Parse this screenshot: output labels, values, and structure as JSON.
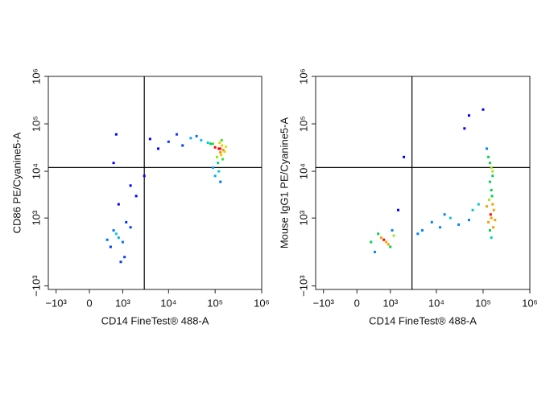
{
  "chart_data": [
    {
      "type": "scatter",
      "scale": "biexponential",
      "x_label": "CD14 FineTest® 488-A",
      "y_label": "CD86 PE/Cyanine5-A",
      "xlim": [
        -1500,
        1000000
      ],
      "ylim": [
        -1200,
        1000000
      ],
      "xticks": [
        {
          "value": -1000,
          "label": "−10³"
        },
        0,
        {
          "value": 1000,
          "label": "10³"
        },
        {
          "value": 10000,
          "label": "10⁴"
        },
        {
          "value": 100000,
          "label": "10⁵"
        },
        {
          "value": 1000000,
          "label": "10⁶"
        }
      ],
      "yticks": [
        {
          "value": -1000,
          "label": "−10³"
        },
        {
          "value": 1000,
          "label": "10³"
        },
        {
          "value": 10000,
          "label": "10⁴"
        },
        {
          "value": 100000,
          "label": "10⁵"
        },
        {
          "value": 1000000,
          "label": "10⁶"
        }
      ],
      "gate": {
        "x": 3000,
        "y": 12000
      },
      "x": [
        120000,
        130000,
        140000,
        110000,
        150000,
        125000,
        135000,
        100000,
        160000,
        145000,
        115000,
        128000,
        138000,
        90000,
        170000,
        70000,
        50000,
        30000,
        20000,
        10000,
        6000,
        4000,
        40000,
        80000,
        15000,
        800,
        600,
        1000,
        1200,
        500,
        900,
        700,
        1500,
        400,
        1100,
        1500,
        2000,
        800,
        600,
        3000,
        100000,
        130000,
        90000,
        120000,
        700
      ],
      "y": [
        30000,
        25000,
        35000,
        20000,
        28000,
        40000,
        22000,
        32000,
        26000,
        18000,
        15000,
        30000,
        45000,
        38000,
        33000,
        40000,
        45000,
        50000,
        35000,
        42000,
        30000,
        48000,
        55000,
        38000,
        60000,
        300,
        500,
        200,
        800,
        100,
        -200,
        400,
        600,
        250,
        -100,
        5000,
        3000,
        2000,
        15000,
        8000,
        8000,
        6000,
        12000,
        10000,
        60000
      ]
    },
    {
      "type": "scatter",
      "scale": "biexponential",
      "x_label": "CD14 FineTest® 488-A",
      "y_label": "Mouse IgG1 PE/Cyanine5-A",
      "xlim": [
        -1500,
        1000000
      ],
      "ylim": [
        -1200,
        1000000
      ],
      "xticks": [
        {
          "value": -1000,
          "label": "−10³"
        },
        0,
        {
          "value": 1000,
          "label": "10³"
        },
        {
          "value": 10000,
          "label": "10⁴"
        },
        {
          "value": 100000,
          "label": "10⁵"
        },
        {
          "value": 1000000,
          "label": "10⁶"
        }
      ],
      "yticks": [
        {
          "value": -1000,
          "label": "−10³"
        },
        {
          "value": 1000,
          "label": "10³"
        },
        {
          "value": 10000,
          "label": "10⁴"
        },
        {
          "value": 100000,
          "label": "10⁵"
        },
        {
          "value": 1000000,
          "label": "10⁶"
        }
      ],
      "gate": {
        "x": 3000,
        "y": 12000
      },
      "x": [
        150000,
        160000,
        140000,
        170000,
        130000,
        155000,
        145000,
        165000,
        135000,
        120000,
        180000,
        150000,
        140000,
        160000,
        150000,
        800,
        600,
        1000,
        500,
        900,
        700,
        1200,
        400,
        1100,
        300,
        5000,
        8000,
        12000,
        20000,
        30000,
        50000,
        4000,
        15000,
        60000,
        80000,
        150000,
        140000,
        160000,
        130000,
        120000,
        50000,
        40000,
        1500,
        2000,
        100000
      ],
      "y": [
        1000,
        2000,
        500,
        1500,
        800,
        3000,
        1200,
        600,
        2500,
        1800,
        900,
        4000,
        6000,
        8000,
        300,
        200,
        300,
        100,
        400,
        150,
        250,
        350,
        0,
        500,
        200,
        500,
        800,
        600,
        1000,
        700,
        900,
        400,
        1200,
        1500,
        2000,
        12000,
        15000,
        10000,
        20000,
        30000,
        150000,
        80000,
        1500,
        20000,
        200000
      ]
    }
  ]
}
